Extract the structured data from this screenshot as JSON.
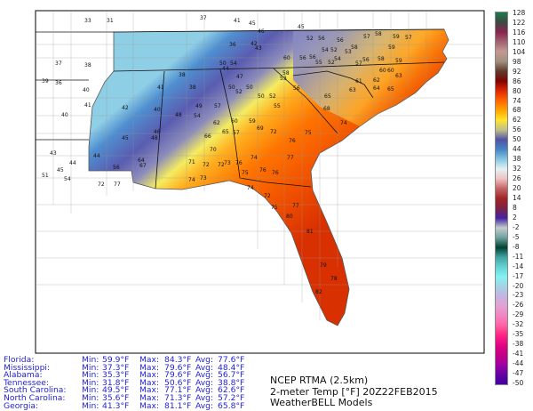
{
  "caption": {
    "line1": "NCEP RTMA (2.5km)",
    "line2": "2-meter Temp [°F] 20Z22FEB2015",
    "line3": "WeatherBELL Models"
  },
  "stats": [
    {
      "state": "Florida:",
      "min_label": "Min:",
      "min": "59.9°F",
      "max_label": "Max:",
      "max": "84.3°F",
      "avg_label": "Avg:",
      "avg": "77.6°F"
    },
    {
      "state": "Mississippi:",
      "min_label": "Min:",
      "min": "37.3°F",
      "max_label": "Max:",
      "max": "79.6°F",
      "avg_label": "Avg:",
      "avg": "48.4°F"
    },
    {
      "state": "Alabama:",
      "min_label": "Min:",
      "min": "35.3°F",
      "max_label": "Max:",
      "max": "79.6°F",
      "avg_label": "Avg:",
      "avg": "56.7°F"
    },
    {
      "state": "Tennessee:",
      "min_label": "Min:",
      "min": "31.8°F",
      "max_label": "Max:",
      "max": "50.6°F",
      "avg_label": "Avg:",
      "avg": "38.8°F"
    },
    {
      "state": "South Carolina:",
      "min_label": "Min:",
      "min": "49.5°F",
      "max_label": "Max:",
      "max": "77.1°F",
      "avg_label": "Avg:",
      "avg": "62.6°F"
    },
    {
      "state": "North Carolina:",
      "min_label": "Min:",
      "min": "35.6°F",
      "max_label": "Max:",
      "max": "71.3°F",
      "avg_label": "Avg:",
      "avg": "57.2°F"
    },
    {
      "state": "Georgia:",
      "min_label": "Min:",
      "min": "41.3°F",
      "max_label": "Max:",
      "max": "81.1°F",
      "avg_label": "Avg:",
      "avg": "65.8°F"
    }
  ],
  "colorbar": {
    "labels": [
      "128",
      "122",
      "116",
      "110",
      "104",
      "98",
      "92",
      "86",
      "80",
      "74",
      "68",
      "62",
      "56",
      "50",
      "44",
      "38",
      "32",
      "26",
      "20",
      "14",
      "8",
      "2",
      "-2",
      "-5",
      "-8",
      "-11",
      "-14",
      "-17",
      "-20",
      "-23",
      "-26",
      "-29",
      "-32",
      "-35",
      "-38",
      "-41",
      "-44",
      "-47",
      "-50"
    ],
    "colors": [
      "#1b7a4c",
      "#3c4a42",
      "#8a2450",
      "#a06272",
      "#c39a92",
      "#a08e7e",
      "#5e3a2a",
      "#7e0404",
      "#e02800",
      "#ff6400",
      "#ffa400",
      "#ffe52a",
      "#bfbf8a",
      "#5252a4",
      "#4484c4",
      "#86c6e2",
      "#e4f2f2",
      "#f0c2c2",
      "#c46464",
      "#a02626",
      "#7e2244",
      "#4422a2",
      "#c4cccc",
      "#72a2a2",
      "#004232",
      "#42a2a2",
      "#62d2d2",
      "#84f2f2",
      "#a4d2e2",
      "#c4b4e2",
      "#e2a2d2",
      "#f284c4",
      "#ff62a2",
      "#ff2484",
      "#e20284",
      "#c20084",
      "#a200a2",
      "#6202a2",
      "#4200a2"
    ]
  },
  "stations": [
    "37",
    "38",
    "39",
    "36",
    "40",
    "41",
    "40",
    "43",
    "44",
    "45",
    "51",
    "54",
    "72",
    "77",
    "33",
    "31",
    "37",
    "41",
    "45",
    "41",
    "42",
    "40",
    "46",
    "45",
    "48",
    "44",
    "56",
    "64",
    "67",
    "38",
    "38",
    "48",
    "49",
    "57",
    "54",
    "62",
    "65",
    "66",
    "70",
    "71",
    "72",
    "72",
    "73",
    "60",
    "57",
    "59",
    "69",
    "72",
    "76",
    "74",
    "76",
    "75",
    "76",
    "76",
    "77",
    "74",
    "73",
    "74",
    "72",
    "75",
    "77",
    "80",
    "50",
    "52",
    "50",
    "50",
    "52",
    "55",
    "47",
    "44",
    "46",
    "45",
    "42",
    "43",
    "36",
    "50",
    "54",
    "52",
    "56",
    "56",
    "58",
    "58",
    "57",
    "59",
    "59",
    "57",
    "54",
    "52",
    "53",
    "54",
    "52",
    "56",
    "60",
    "56",
    "55",
    "57",
    "56",
    "58",
    "59",
    "60",
    "60",
    "63",
    "61",
    "62",
    "64",
    "65",
    "58",
    "53",
    "56",
    "63",
    "65",
    "68",
    "74",
    "75",
    "81",
    "79",
    "82",
    "78"
  ]
}
